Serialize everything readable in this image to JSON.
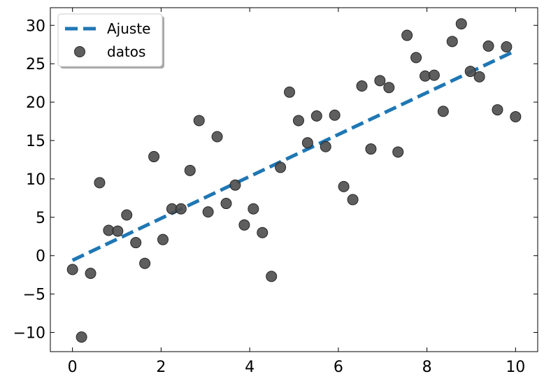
{
  "chart_data": {
    "type": "scatter",
    "title": "",
    "xlabel": "",
    "ylabel": "",
    "xlim": [
      -0.5,
      10.5
    ],
    "ylim": [
      -12.5,
      32.3
    ],
    "xticks": [
      0,
      2,
      4,
      6,
      8,
      10
    ],
    "yticks": [
      -10,
      -5,
      0,
      5,
      10,
      15,
      20,
      25,
      30
    ],
    "grid": false,
    "legend_position": "top-left",
    "series": [
      {
        "name": "Ajuste",
        "kind": "line",
        "style": "dashed",
        "color": "#1f77b4",
        "x": [
          0,
          10
        ],
        "y": [
          -0.6,
          26.7
        ]
      },
      {
        "name": "datos",
        "kind": "scatter",
        "color": "#4d4d4d",
        "x": [
          0.0,
          0.204,
          0.408,
          0.612,
          0.816,
          1.02,
          1.224,
          1.429,
          1.633,
          1.837,
          2.041,
          2.245,
          2.449,
          2.653,
          2.857,
          3.061,
          3.265,
          3.469,
          3.673,
          3.878,
          4.082,
          4.286,
          4.49,
          4.694,
          4.898,
          5.102,
          5.306,
          5.51,
          5.714,
          5.918,
          6.122,
          6.327,
          6.531,
          6.735,
          6.939,
          7.143,
          7.347,
          7.551,
          7.755,
          7.959,
          8.163,
          8.367,
          8.571,
          8.776,
          8.98,
          9.184,
          9.388,
          9.592,
          9.796,
          10.0
        ],
        "y": [
          -1.8,
          -10.6,
          -2.3,
          9.5,
          3.3,
          3.2,
          5.3,
          1.7,
          -1.0,
          12.9,
          2.1,
          6.1,
          6.1,
          11.1,
          17.6,
          5.7,
          15.5,
          6.8,
          9.2,
          4.0,
          6.1,
          3.0,
          -2.7,
          11.5,
          21.3,
          17.6,
          14.7,
          18.2,
          14.2,
          18.3,
          9.0,
          7.3,
          22.1,
          13.9,
          22.8,
          21.9,
          13.5,
          28.7,
          25.8,
          23.4,
          23.5,
          18.8,
          27.9,
          30.2,
          24.0,
          23.3,
          27.3,
          19.0,
          27.2,
          18.1
        ]
      }
    ]
  }
}
